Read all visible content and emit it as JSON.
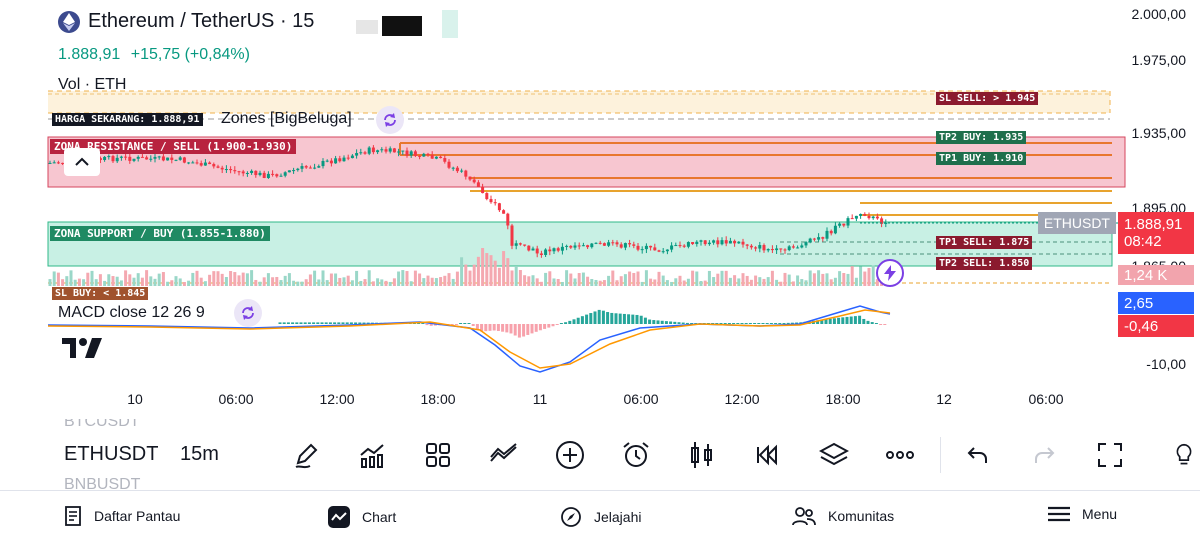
{
  "header": {
    "symbol_title": "Ethereum / TetherUS · 15",
    "price": "1.888,91",
    "change": "+15,75 (+0,84%)",
    "volume_label": "Vol · ETH"
  },
  "indicators": {
    "zones_name": "Zones [BigBeluga]",
    "macd_name": "MACD close 12 26 9"
  },
  "annotations": {
    "current_price": "HARGA SEKARANG: 1.888,91",
    "resistance_zone": "ZONA RESISTANCE / SELL (1.900-1.930)",
    "support_zone": "ZONA SUPPORT / BUY (1.855-1.880)",
    "sl_buy": "SL BUY: < 1.845",
    "sl_sell": "SL SELL: > 1.945",
    "tp2_buy": "TP2 BUY: 1.935",
    "tp1_buy": "TP1 BUY: 1.910",
    "tp1_sell": "TP1 SELL: 1.875",
    "tp2_sell": "TP2 SELL: 1.850"
  },
  "price_axis": {
    "ticks": [
      "2.000,00",
      "1.975,00",
      "1.935,00",
      "1.895,00",
      "1.865,00",
      "-10,00"
    ],
    "symbol_tag": "ETHUSDT",
    "last_price": "1.888,91",
    "countdown": "08:42",
    "volume_tag": "1,24 K",
    "macd_tag": "2,65",
    "signal_tag": "-0,46"
  },
  "time_axis": [
    "10",
    "06:00",
    "12:00",
    "18:00",
    "11",
    "06:00",
    "12:00",
    "18:00",
    "12",
    "06:00"
  ],
  "toolbar": {
    "symbol_prev": "BTCUSDT",
    "symbol": "ETHUSDT",
    "symbol_next": "BNBUSDT",
    "interval": "15m"
  },
  "bottom_nav": {
    "watchlist": "Daftar Pantau",
    "chart": "Chart",
    "explore": "Jelajahi",
    "community": "Komunitas",
    "menu": "Menu"
  },
  "colors": {
    "up": "#089981",
    "down": "#f23645",
    "resistance_fill": "#f7c6d0",
    "support_fill": "#c8f0e4",
    "macd_line": "#2962ff",
    "signal_line": "#ff9800"
  },
  "icons": [
    "ethereum-icon",
    "refresh-icon",
    "chevron-up-icon",
    "lightning-icon",
    "pencil-icon",
    "indicators-icon",
    "layout-icon",
    "compare-icon",
    "plus-icon",
    "alarm-icon",
    "candles-icon",
    "replay-icon",
    "layers-icon",
    "more-icon",
    "undo-icon",
    "redo-icon",
    "fullscreen-icon",
    "bulb-icon",
    "watchlist-icon",
    "chart-icon",
    "compass-icon",
    "community-icon",
    "menu-icon"
  ]
}
